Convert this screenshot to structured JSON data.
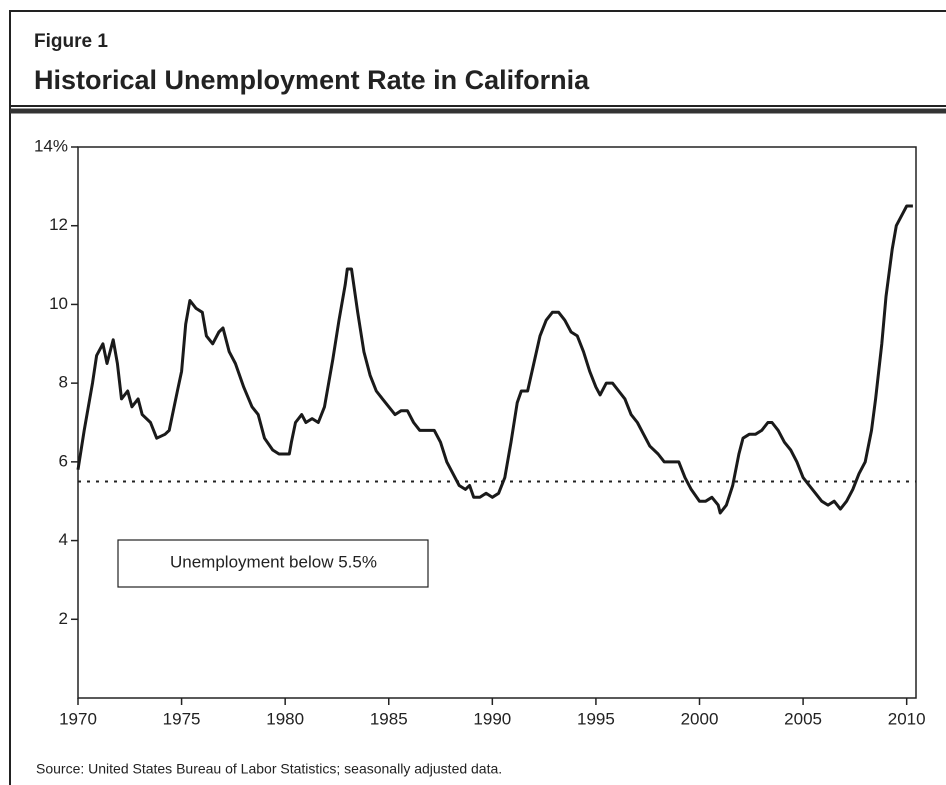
{
  "chart_data": {
    "type": "line",
    "figure_label": "Figure 1",
    "title": "Historical Unemployment Rate in California",
    "source": "Source: United States Bureau of Labor Statistics; seasonally adjusted data.",
    "annotation": "Unemployment below 5.5%",
    "threshold": 5.5,
    "xlim": [
      1970,
      2010.45
    ],
    "xticks": [
      1970,
      1975,
      1980,
      1985,
      1990,
      1995,
      2000,
      2005,
      2010
    ],
    "ylim": [
      0,
      14
    ],
    "yticks": [
      2,
      4,
      6,
      8,
      10,
      12,
      {
        "value": 14,
        "label": "14%"
      }
    ],
    "series": [
      {
        "color": "#1a1a1a",
        "x": [
          1970.0,
          1970.3,
          1970.7,
          1970.9,
          1971.2,
          1971.4,
          1971.7,
          1971.9,
          1972.1,
          1972.4,
          1972.6,
          1972.9,
          1973.1,
          1973.5,
          1973.8,
          1974.2,
          1974.4,
          1974.8,
          1975.0,
          1975.2,
          1975.4,
          1975.7,
          1976.0,
          1976.2,
          1976.5,
          1976.8,
          1977.0,
          1977.3,
          1977.6,
          1978.0,
          1978.4,
          1978.7,
          1979.0,
          1979.4,
          1979.7,
          1980.2,
          1980.3,
          1980.5,
          1980.8,
          1981.0,
          1981.3,
          1981.6,
          1981.9,
          1982.3,
          1982.6,
          1982.9,
          1983.0,
          1983.2,
          1983.5,
          1983.8,
          1984.1,
          1984.4,
          1984.7,
          1985.0,
          1985.3,
          1985.6,
          1985.9,
          1986.2,
          1986.5,
          1986.9,
          1987.2,
          1987.5,
          1987.8,
          1988.1,
          1988.4,
          1988.7,
          1988.9,
          1989.1,
          1989.4,
          1989.7,
          1990.0,
          1990.3,
          1990.6,
          1990.9,
          1991.2,
          1991.4,
          1991.7,
          1992.0,
          1992.3,
          1992.6,
          1992.9,
          1993.2,
          1993.5,
          1993.8,
          1994.1,
          1994.4,
          1994.7,
          1995.0,
          1995.2,
          1995.5,
          1995.8,
          1996.1,
          1996.4,
          1996.7,
          1997.0,
          1997.3,
          1997.6,
          1998.0,
          1998.3,
          1998.7,
          1999.0,
          1999.3,
          1999.6,
          2000.0,
          2000.3,
          2000.6,
          2000.9,
          2001.0,
          2001.3,
          2001.6,
          2001.9,
          2002.1,
          2002.4,
          2002.7,
          2003.0,
          2003.3,
          2003.5,
          2003.8,
          2004.1,
          2004.4,
          2004.7,
          2005.0,
          2005.3,
          2005.6,
          2005.9,
          2006.2,
          2006.5,
          2006.8,
          2007.1,
          2007.4,
          2007.7,
          2008.0,
          2008.3,
          2008.5,
          2008.8,
          2009.0,
          2009.3,
          2009.5,
          2009.8,
          2010.0,
          2010.3
        ],
        "values": [
          5.8,
          6.8,
          8.0,
          8.7,
          9.0,
          8.5,
          9.1,
          8.5,
          7.6,
          7.8,
          7.4,
          7.6,
          7.2,
          7.0,
          6.6,
          6.7,
          6.8,
          7.8,
          8.3,
          9.5,
          10.1,
          9.9,
          9.8,
          9.2,
          9.0,
          9.3,
          9.4,
          8.8,
          8.5,
          7.9,
          7.4,
          7.2,
          6.6,
          6.3,
          6.2,
          6.2,
          6.5,
          7.0,
          7.2,
          7.0,
          7.1,
          7.0,
          7.4,
          8.6,
          9.6,
          10.5,
          10.9,
          10.9,
          9.8,
          8.8,
          8.2,
          7.8,
          7.6,
          7.4,
          7.2,
          7.3,
          7.3,
          7.0,
          6.8,
          6.8,
          6.8,
          6.5,
          6.0,
          5.7,
          5.4,
          5.3,
          5.4,
          5.1,
          5.1,
          5.2,
          5.1,
          5.2,
          5.6,
          6.5,
          7.5,
          7.8,
          7.8,
          8.5,
          9.2,
          9.6,
          9.8,
          9.8,
          9.6,
          9.3,
          9.2,
          8.8,
          8.3,
          7.9,
          7.7,
          8.0,
          8.0,
          7.8,
          7.6,
          7.2,
          7.0,
          6.7,
          6.4,
          6.2,
          6.0,
          6.0,
          6.0,
          5.6,
          5.3,
          5.0,
          5.0,
          5.1,
          4.9,
          4.7,
          4.9,
          5.4,
          6.2,
          6.6,
          6.7,
          6.7,
          6.8,
          7.0,
          7.0,
          6.8,
          6.5,
          6.3,
          6.0,
          5.6,
          5.4,
          5.2,
          5.0,
          4.9,
          5.0,
          4.8,
          5.0,
          5.3,
          5.7,
          6.0,
          6.8,
          7.6,
          9.0,
          10.2,
          11.4,
          12.0,
          12.3,
          12.5,
          12.5
        ]
      }
    ]
  }
}
